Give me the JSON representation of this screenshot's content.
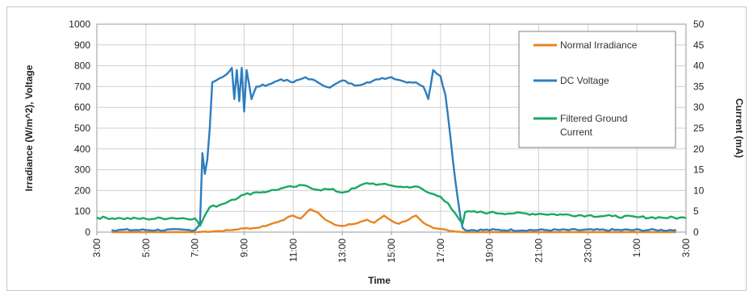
{
  "chart_data": {
    "type": "line",
    "xlabel": "Time",
    "ylabel_left": "Irradiance (W/m^2), Voltage",
    "ylabel_right": "Current (mA)",
    "ylim_left": [
      0,
      1000
    ],
    "ylim_right": [
      0,
      50
    ],
    "y_ticks_left": [
      "0",
      "100",
      "200",
      "300",
      "400",
      "500",
      "600",
      "700",
      "800",
      "900",
      "1000"
    ],
    "y_ticks_right": [
      "0",
      "5",
      "10",
      "15",
      "20",
      "25",
      "30",
      "35",
      "40",
      "45",
      "50"
    ],
    "x_tick_labels": [
      "3:00",
      "5:00",
      "7:00",
      "9:00",
      "11:00",
      "13:00",
      "15:00",
      "17:00",
      "19:00",
      "21:00",
      "23:00",
      "1:00",
      "3:00"
    ],
    "x_range_hours": [
      3,
      27
    ],
    "grid": true,
    "legend_position": "top-right",
    "series": [
      {
        "name": "Normal Irradiance",
        "axis": "left",
        "color": "#e8841f",
        "points": [
          [
            3.6,
            0
          ],
          [
            7.0,
            0
          ],
          [
            7.3,
            2
          ],
          [
            8.0,
            5
          ],
          [
            8.5,
            10
          ],
          [
            9.0,
            18
          ],
          [
            9.5,
            20
          ],
          [
            10.0,
            35
          ],
          [
            10.5,
            55
          ],
          [
            11.0,
            80
          ],
          [
            11.3,
            65
          ],
          [
            11.7,
            110
          ],
          [
            12.0,
            95
          ],
          [
            12.3,
            60
          ],
          [
            12.7,
            35
          ],
          [
            13.0,
            30
          ],
          [
            13.5,
            40
          ],
          [
            14.0,
            60
          ],
          [
            14.3,
            45
          ],
          [
            14.7,
            80
          ],
          [
            15.0,
            55
          ],
          [
            15.3,
            40
          ],
          [
            15.7,
            60
          ],
          [
            16.0,
            80
          ],
          [
            16.3,
            45
          ],
          [
            16.7,
            20
          ],
          [
            17.0,
            15
          ],
          [
            17.5,
            5
          ],
          [
            18.0,
            0
          ],
          [
            26.6,
            0
          ]
        ]
      },
      {
        "name": "DC Voltage",
        "axis": "left",
        "color": "#2d7dbf",
        "points": [
          [
            3.6,
            10
          ],
          [
            7.0,
            10
          ],
          [
            7.2,
            40
          ],
          [
            7.3,
            380
          ],
          [
            7.4,
            280
          ],
          [
            7.5,
            350
          ],
          [
            7.6,
            500
          ],
          [
            7.7,
            720
          ],
          [
            8.0,
            740
          ],
          [
            8.3,
            760
          ],
          [
            8.5,
            790
          ],
          [
            8.6,
            640
          ],
          [
            8.7,
            780
          ],
          [
            8.8,
            630
          ],
          [
            8.9,
            790
          ],
          [
            9.0,
            580
          ],
          [
            9.1,
            780
          ],
          [
            9.3,
            640
          ],
          [
            9.5,
            700
          ],
          [
            10.0,
            710
          ],
          [
            10.5,
            735
          ],
          [
            11.0,
            720
          ],
          [
            11.5,
            745
          ],
          [
            12.0,
            720
          ],
          [
            12.5,
            695
          ],
          [
            13.0,
            730
          ],
          [
            13.5,
            705
          ],
          [
            14.0,
            720
          ],
          [
            14.5,
            735
          ],
          [
            15.0,
            745
          ],
          [
            15.5,
            725
          ],
          [
            16.0,
            720
          ],
          [
            16.3,
            700
          ],
          [
            16.5,
            640
          ],
          [
            16.7,
            780
          ],
          [
            17.0,
            750
          ],
          [
            17.2,
            660
          ],
          [
            17.4,
            460
          ],
          [
            17.6,
            250
          ],
          [
            17.8,
            80
          ],
          [
            17.9,
            20
          ],
          [
            18.0,
            10
          ],
          [
            26.6,
            10
          ]
        ]
      },
      {
        "name": "Filtered Ground Current",
        "axis": "right",
        "color": "#1aa862",
        "points": [
          [
            3.0,
            3.5
          ],
          [
            4.0,
            3.3
          ],
          [
            5.0,
            3.2
          ],
          [
            6.0,
            3.4
          ],
          [
            7.0,
            3.3
          ],
          [
            7.2,
            1.5
          ],
          [
            7.4,
            4.0
          ],
          [
            7.6,
            6.0
          ],
          [
            8.0,
            6.5
          ],
          [
            8.5,
            7.8
          ],
          [
            9.0,
            9.0
          ],
          [
            9.5,
            9.6
          ],
          [
            10.0,
            9.8
          ],
          [
            10.5,
            10.5
          ],
          [
            11.0,
            10.9
          ],
          [
            11.5,
            11.2
          ],
          [
            12.0,
            10.2
          ],
          [
            12.5,
            10.3
          ],
          [
            13.0,
            9.5
          ],
          [
            13.5,
            10.5
          ],
          [
            14.0,
            11.8
          ],
          [
            14.5,
            11.5
          ],
          [
            15.0,
            11.2
          ],
          [
            15.5,
            10.8
          ],
          [
            16.0,
            11.0
          ],
          [
            16.5,
            9.5
          ],
          [
            17.0,
            8.5
          ],
          [
            17.3,
            7.0
          ],
          [
            17.6,
            4.5
          ],
          [
            17.9,
            2.0
          ],
          [
            18.0,
            4.8
          ],
          [
            19.0,
            4.7
          ],
          [
            20.0,
            4.5
          ],
          [
            21.0,
            4.4
          ],
          [
            22.0,
            4.2
          ],
          [
            23.0,
            4.0
          ],
          [
            24.0,
            3.8
          ],
          [
            25.0,
            3.6
          ],
          [
            26.0,
            3.5
          ],
          [
            27.0,
            3.4
          ]
        ]
      }
    ]
  }
}
